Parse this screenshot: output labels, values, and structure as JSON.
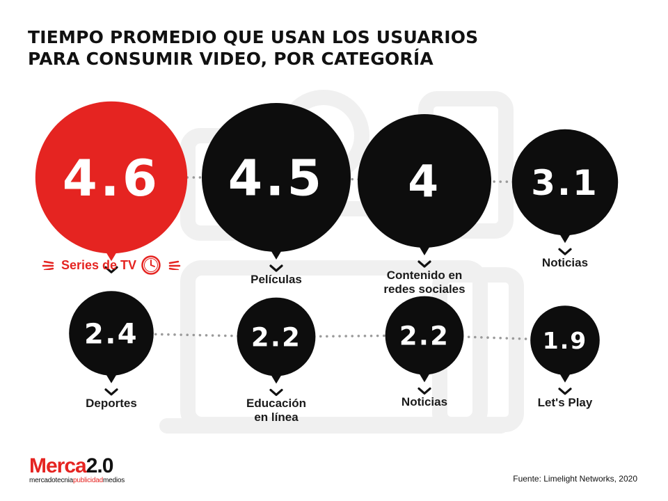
{
  "title_lines": [
    "TIEMPO PROMEDIO QUE USAN LOS USUARIOS",
    "PARA CONSUMIR VIDEO, POR CATEGORÍA"
  ],
  "chart_data": {
    "type": "bubble",
    "title": "TIEMPO PROMEDIO QUE USAN LOS USUARIOS PARA CONSUMIR VIDEO, POR CATEGORÍA",
    "categories": [
      "Series de TV",
      "Películas",
      "Contenido en\nredes sociales",
      "Noticias",
      "Deportes",
      "Educación\nen línea",
      "Noticias",
      "Let's Play"
    ],
    "values": [
      4.6,
      4.5,
      4,
      3.1,
      2.4,
      2.2,
      2.2,
      1.9
    ],
    "value_labels": [
      "4.6",
      "4.5",
      "4",
      "3.1",
      "2.4",
      "2.2",
      "2.2",
      "1.9"
    ],
    "highlight_index": 0
  },
  "colors": {
    "highlight": "#e52421",
    "bubble": "#0d0d0d",
    "text": "#1a1a1a",
    "watermark": "#f1f1f1"
  },
  "icons": {
    "highlight_icon": "clock-icon"
  },
  "logo": {
    "merca": "Merca",
    "two": "2.0",
    "sub_a": "mercadotecnia",
    "sub_b": "publicidad",
    "sub_c": "medios"
  },
  "source": "Fuente: Limelight Networks, 2020"
}
